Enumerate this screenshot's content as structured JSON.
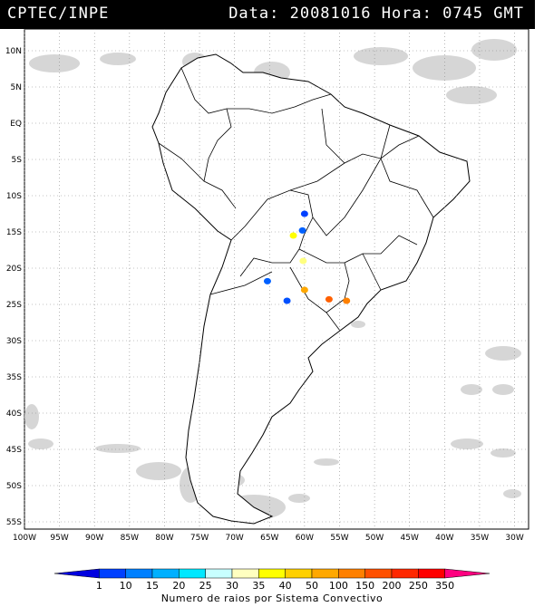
{
  "header": {
    "title": "CPTEC/INPE",
    "stamp": "Data: 20081016 Hora: 0745 GMT"
  },
  "map": {
    "lat_ticks": [
      "10N",
      "5N",
      "EQ",
      "5S",
      "10S",
      "15S",
      "20S",
      "25S",
      "30S",
      "35S",
      "40S",
      "45S",
      "50S",
      "55S"
    ],
    "lon_ticks": [
      "100W",
      "95W",
      "90W",
      "85W",
      "80W",
      "75W",
      "70W",
      "65W",
      "60W",
      "55W",
      "50W",
      "45W",
      "40W",
      "35W",
      "30W"
    ],
    "lat_range": [
      -56,
      13
    ],
    "lon_range": [
      -100,
      -28
    ],
    "grid": "dotted"
  },
  "colorbar": {
    "labels": [
      "1",
      "10",
      "15",
      "20",
      "25",
      "30",
      "35",
      "40",
      "50",
      "100",
      "150",
      "200",
      "250",
      "350"
    ],
    "colors": [
      "#0000e0",
      "#0040ff",
      "#0080ff",
      "#00b0ff",
      "#00e8ff",
      "#c8ffff",
      "#ffffc0",
      "#ffff00",
      "#ffd000",
      "#ffa800",
      "#ff8000",
      "#ff5000",
      "#ff2800",
      "#ff0000",
      "#ff0080"
    ],
    "caption": "Numero de raios por Sistema Convectivo"
  },
  "clusters": [
    {
      "lon": -60.0,
      "lat": -12.5,
      "color": "#0040ff"
    },
    {
      "lon": -60.3,
      "lat": -14.8,
      "color": "#0060ff"
    },
    {
      "lon": -61.6,
      "lat": -15.5,
      "color": "#ffff00"
    },
    {
      "lon": -60.2,
      "lat": -19.0,
      "color": "#ffff80"
    },
    {
      "lon": -65.3,
      "lat": -21.8,
      "color": "#0060ff"
    },
    {
      "lon": -62.5,
      "lat": -24.5,
      "color": "#0050ff"
    },
    {
      "lon": -60.0,
      "lat": -23.0,
      "color": "#ffa800"
    },
    {
      "lon": -56.5,
      "lat": -24.3,
      "color": "#ff6000"
    },
    {
      "lon": -54.0,
      "lat": -24.5,
      "color": "#ff8000"
    }
  ]
}
